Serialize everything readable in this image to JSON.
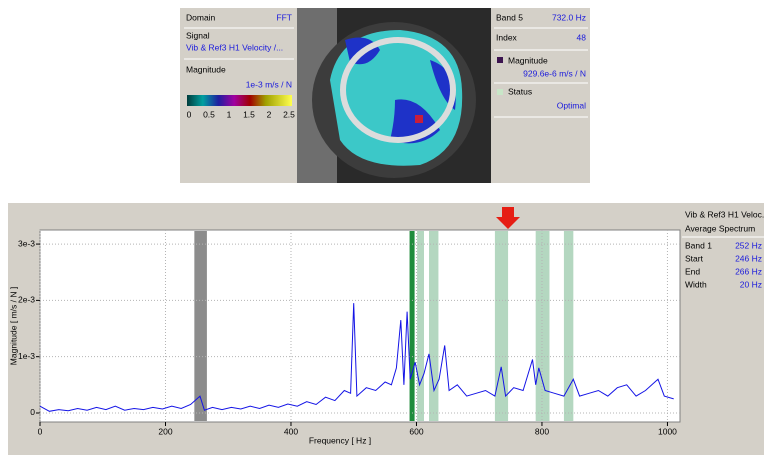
{
  "top_panel": {
    "domain_label": "Domain",
    "domain_value": "FFT",
    "signal_label": "Signal",
    "signal_value": "Vib & Ref3 H1 Velocity /...",
    "magnitude_label": "Magnitude",
    "magnitude_unit": "1e-3 m/s / N",
    "colorbar_labels": [
      "0",
      "0.5",
      "1",
      "1.5",
      "2",
      "2.5"
    ],
    "band_label": "Band 5",
    "band_value": "732.0 Hz",
    "index_label": "Index",
    "index_value": "48",
    "point_magnitude_label": "Magnitude",
    "point_magnitude_value": "929.6e-6 m/s / N",
    "status_label": "Status",
    "status_value": "Optimal"
  },
  "side_panel": {
    "subtitle": "Average Spectrum",
    "rows": [
      [
        "Band 1",
        "252 Hz"
      ],
      [
        "Start",
        "246 Hz"
      ],
      [
        "End",
        "266 Hz"
      ],
      [
        "Width",
        "20 Hz"
      ]
    ]
  },
  "chart_data": {
    "type": "line",
    "xlabel": "Frequency [ Hz ]",
    "ylabel": "Magnitude [ m/s / N ]",
    "xlim": [
      0,
      1020
    ],
    "xticks": [
      0,
      200,
      400,
      600,
      800,
      1000
    ],
    "ylim": [
      -0.00016,
      0.00325
    ],
    "yticks": [
      {
        "value": 0,
        "label": "0"
      },
      {
        "value": 0.001,
        "label": "1e-3"
      },
      {
        "value": 0.002,
        "label": "2e-3"
      },
      {
        "value": 0.003,
        "label": "3e-3"
      }
    ],
    "grid": true,
    "bands": [
      {
        "start": 246,
        "end": 266,
        "color": "#8c8c8c"
      },
      {
        "start": 589,
        "end": 597,
        "color": "#1e8c3c"
      },
      {
        "start": 601,
        "end": 612,
        "color": "#b4d7c0"
      },
      {
        "start": 620,
        "end": 635,
        "color": "#b4d7c0"
      },
      {
        "start": 725,
        "end": 746,
        "color": "#b4d7c0"
      },
      {
        "start": 790,
        "end": 812,
        "color": "#b4d7c0"
      },
      {
        "start": 835,
        "end": 850,
        "color": "#b4d7c0"
      }
    ],
    "x": [
      0,
      15,
      30,
      45,
      60,
      75,
      90,
      105,
      120,
      135,
      150,
      165,
      180,
      195,
      210,
      225,
      240,
      255,
      262,
      275,
      290,
      305,
      320,
      335,
      350,
      365,
      380,
      395,
      410,
      425,
      440,
      455,
      470,
      485,
      495,
      500,
      505,
      520,
      535,
      550,
      560,
      568,
      575,
      580,
      585,
      590,
      598,
      605,
      612,
      620,
      628,
      636,
      645,
      652,
      665,
      680,
      695,
      710,
      725,
      735,
      742,
      755,
      770,
      785,
      790,
      795,
      805,
      820,
      835,
      850,
      860,
      875,
      890,
      905,
      920,
      935,
      950,
      965,
      985,
      995,
      1010
    ],
    "series": [
      {
        "name": "Vib & Ref3 H1 Veloc...",
        "color": "#1414e6",
        "values": [
          0.00012,
          3e-05,
          6e-05,
          4e-05,
          8e-05,
          5e-05,
          0.0001,
          6e-05,
          0.00012,
          5e-05,
          8e-05,
          6e-05,
          0.0001,
          7e-05,
          0.00012,
          8e-05,
          0.00015,
          0.0003,
          5e-05,
          0.0001,
          6e-05,
          0.0001,
          7e-05,
          0.00012,
          8e-05,
          0.00014,
          0.0001,
          0.00016,
          0.00012,
          0.0002,
          0.00015,
          0.00028,
          0.00022,
          0.0004,
          0.00035,
          0.00195,
          0.0003,
          0.00045,
          0.0004,
          0.00055,
          0.0005,
          0.0008,
          0.00165,
          0.0005,
          0.0018,
          0.0006,
          0.0009,
          0.0005,
          0.0007,
          0.00105,
          0.0004,
          0.0006,
          0.0012,
          0.0004,
          0.0005,
          0.0003,
          0.00035,
          0.0004,
          0.0003,
          0.00082,
          0.0003,
          0.00045,
          0.0004,
          0.00095,
          0.0005,
          0.0008,
          0.0004,
          0.00035,
          0.0003,
          0.0006,
          0.0003,
          0.00035,
          0.0004,
          0.0003,
          0.00045,
          0.0005,
          0.0003,
          0.0004,
          0.0006,
          0.0003,
          0.00025
        ]
      }
    ]
  }
}
